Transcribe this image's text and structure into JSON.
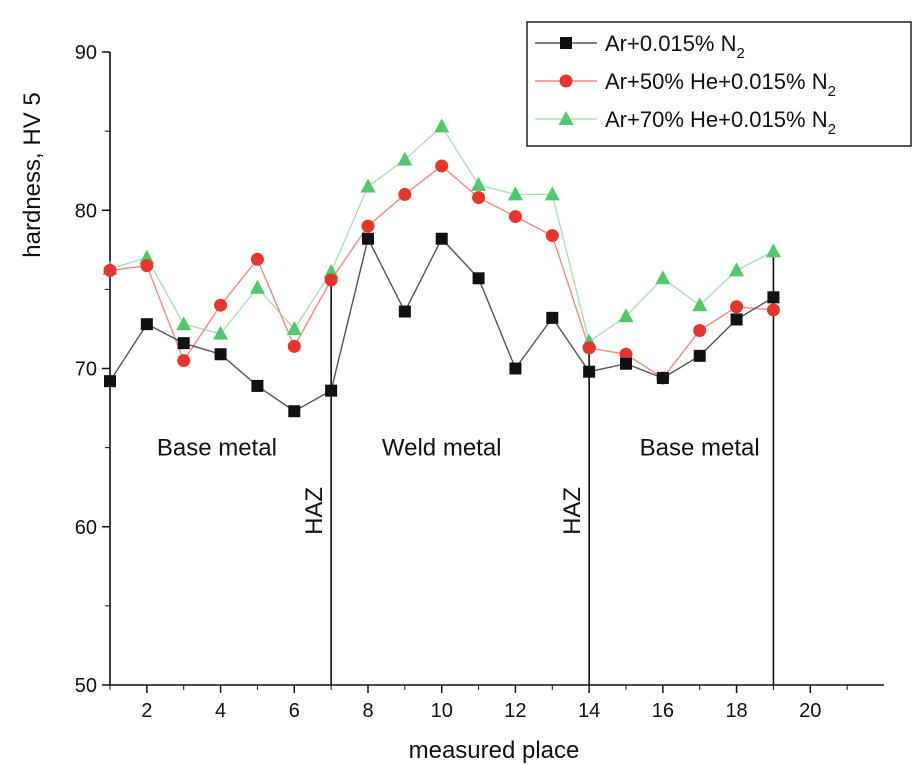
{
  "chart_data": {
    "type": "line",
    "title": "",
    "xlabel": "measured place",
    "ylabel": "hardness, HV 5",
    "xlim": [
      1,
      22
    ],
    "ylim": [
      50,
      90
    ],
    "x_ticks": [
      2,
      4,
      6,
      8,
      10,
      12,
      14,
      16,
      18,
      20
    ],
    "y_ticks": [
      50,
      60,
      70,
      80,
      90
    ],
    "legend_position": "top-right",
    "series": [
      {
        "name": "Ar+0.015% N2",
        "label_main": "Ar+0.015% N",
        "label_sub": "2",
        "color": "#111111",
        "line_color": "#555555",
        "marker": "square",
        "x": [
          1,
          2,
          3,
          4,
          5,
          6,
          7,
          8,
          9,
          10,
          11,
          12,
          13,
          14,
          15,
          16,
          17,
          18,
          19
        ],
        "y": [
          69.2,
          72.8,
          71.6,
          70.9,
          68.9,
          67.3,
          68.6,
          78.2,
          73.6,
          78.2,
          75.7,
          70.0,
          73.2,
          69.8,
          70.3,
          69.4,
          70.8,
          73.1,
          74.5
        ]
      },
      {
        "name": "Ar+50% He+0.015% N2",
        "label_main": "Ar+50% He+0.015% N",
        "label_sub": "2",
        "color": "#e8352b",
        "line_color": "#f28a80",
        "marker": "circle",
        "x": [
          1,
          2,
          3,
          4,
          5,
          6,
          7,
          8,
          9,
          10,
          11,
          12,
          13,
          14,
          15,
          16,
          17,
          18,
          19
        ],
        "y": [
          76.2,
          76.5,
          70.5,
          74.0,
          76.9,
          71.4,
          75.6,
          79.0,
          81.0,
          82.8,
          80.8,
          79.6,
          78.4,
          71.3,
          70.9,
          69.4,
          72.4,
          73.9,
          73.7
        ]
      },
      {
        "name": "Ar+70% He+0.015% N2",
        "label_main": "Ar+70% He+0.015% N",
        "label_sub": "2",
        "color": "#4fc96a",
        "line_color": "#a9e2b4",
        "marker": "triangle",
        "x": [
          1,
          2,
          3,
          4,
          5,
          6,
          7,
          8,
          9,
          10,
          11,
          12,
          13,
          14,
          15,
          16,
          17,
          18,
          19
        ],
        "y": [
          76.3,
          77.0,
          72.8,
          72.2,
          75.1,
          72.5,
          76.1,
          81.5,
          83.2,
          85.3,
          81.6,
          81.0,
          81.0,
          71.7,
          73.3,
          75.7,
          74.0,
          76.2,
          77.4
        ]
      }
    ],
    "annotations": [
      {
        "id": "base-left",
        "text": "Base metal",
        "x": 3.9,
        "y": 64.5
      },
      {
        "id": "weld",
        "text": "Weld metal",
        "x": 10.0,
        "y": 64.5
      },
      {
        "id": "base-right",
        "text": "Base metal",
        "x": 17.0,
        "y": 64.5
      },
      {
        "id": "haz-left",
        "text": "HAZ",
        "x": 6.75,
        "y": 61.0,
        "rotated": true
      },
      {
        "id": "haz-right",
        "text": "HAZ",
        "x": 13.75,
        "y": 61.0,
        "rotated": true
      }
    ],
    "boundary_lines": [
      {
        "x": 7,
        "y_top": 75.6
      },
      {
        "x": 14,
        "y_top": 71.3
      },
      {
        "x": 19,
        "y_top": 77.4
      }
    ]
  }
}
